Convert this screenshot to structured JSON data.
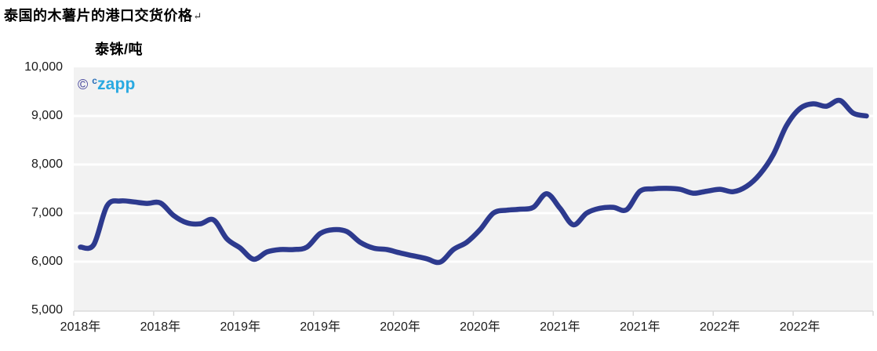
{
  "title": {
    "text": "泰国的木薯片的港口交货价格",
    "return_mark": "↵"
  },
  "watermark": {
    "copyright_symbol": "©",
    "brand_prefix": "c",
    "brand": "zapp"
  },
  "chart_data": {
    "type": "line",
    "title": "泰国的木薯片的港口交货价格",
    "ylabel": "泰铢/吨",
    "ylim": [
      5000,
      10000
    ],
    "grid": "horizontal",
    "legend": "none",
    "yticks": {
      "values": [
        10000,
        9000,
        8000,
        7000,
        6000,
        5000
      ],
      "labels": [
        "10,000",
        "9,000",
        "8,000",
        "7,000",
        "6,000",
        "5,000"
      ]
    },
    "xtick_labels": [
      "2018年",
      "2018年",
      "2019年",
      "2019年",
      "2020年",
      "2020年",
      "2021年",
      "2021年",
      "2022年",
      "2022年"
    ],
    "x": [
      "2018-01",
      "2018-02",
      "2018-03",
      "2018-04",
      "2018-05",
      "2018-06",
      "2018-07",
      "2018-08",
      "2018-09",
      "2018-10",
      "2018-11",
      "2018-12",
      "2019-01",
      "2019-02",
      "2019-03",
      "2019-04",
      "2019-05",
      "2019-06",
      "2019-07",
      "2019-08",
      "2019-09",
      "2019-10",
      "2019-11",
      "2019-12",
      "2020-01",
      "2020-02",
      "2020-03",
      "2020-04",
      "2020-05",
      "2020-06",
      "2020-07",
      "2020-08",
      "2020-09",
      "2020-10",
      "2020-11",
      "2020-12",
      "2021-01",
      "2021-02",
      "2021-03",
      "2021-04",
      "2021-05",
      "2021-06",
      "2021-07",
      "2021-08",
      "2021-09",
      "2021-10",
      "2021-11",
      "2021-12",
      "2022-01",
      "2022-02",
      "2022-03",
      "2022-04",
      "2022-05",
      "2022-06",
      "2022-07",
      "2022-08",
      "2022-09",
      "2022-10",
      "2022-11",
      "2022-12"
    ],
    "values": [
      6300,
      6350,
      7150,
      7250,
      7230,
      7200,
      7210,
      6950,
      6800,
      6780,
      6860,
      6470,
      6280,
      6050,
      6200,
      6250,
      6250,
      6300,
      6580,
      6660,
      6620,
      6400,
      6280,
      6250,
      6180,
      6120,
      6060,
      5990,
      6250,
      6400,
      6660,
      7000,
      7060,
      7080,
      7120,
      7400,
      7100,
      6760,
      7000,
      7100,
      7120,
      7070,
      7450,
      7500,
      7510,
      7490,
      7410,
      7450,
      7490,
      7440,
      7550,
      7800,
      8200,
      8800,
      9150,
      9250,
      9200,
      9320,
      9060,
      9000
    ],
    "colors": {
      "line": "#2d3a8e",
      "plot_background": "#f2f2f2",
      "gridline": "#ffffff",
      "axis": "#d9d9d9"
    }
  }
}
